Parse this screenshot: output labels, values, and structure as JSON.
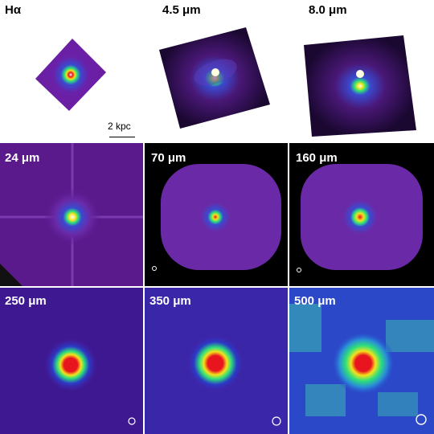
{
  "panels": [
    {
      "label": "Hα"
    },
    {
      "label": "4.5 μm"
    },
    {
      "label": "8.0 μm"
    },
    {
      "label": "24 μm"
    },
    {
      "label": "70 μm"
    },
    {
      "label": "160 μm"
    },
    {
      "label": "250 μm"
    },
    {
      "label": "350 μm"
    },
    {
      "label": "500 μm"
    }
  ],
  "scale_bar": {
    "label": "2 kpc"
  },
  "colors": {
    "background_dark": "#000000",
    "field_purple": "#5a1a8c",
    "field_blue": "#2a3cc8",
    "core_red": "#e8141e",
    "core_yellow": "#f4e21c",
    "ring_green": "#2ee07a"
  }
}
